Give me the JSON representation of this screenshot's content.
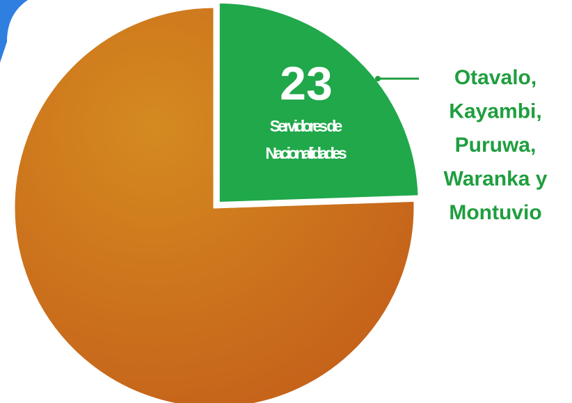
{
  "chart_data": {
    "type": "pie",
    "categories": [
      "Servidores de Nacionalidades",
      null
    ],
    "values": [
      23,
      71
    ],
    "colors": [
      "#20a84a",
      "#c96d1a"
    ],
    "annotation": [
      "Otavalo,",
      "Kayambi,",
      "Puruwa,",
      "Waranka y",
      "Montuvio"
    ]
  }
}
